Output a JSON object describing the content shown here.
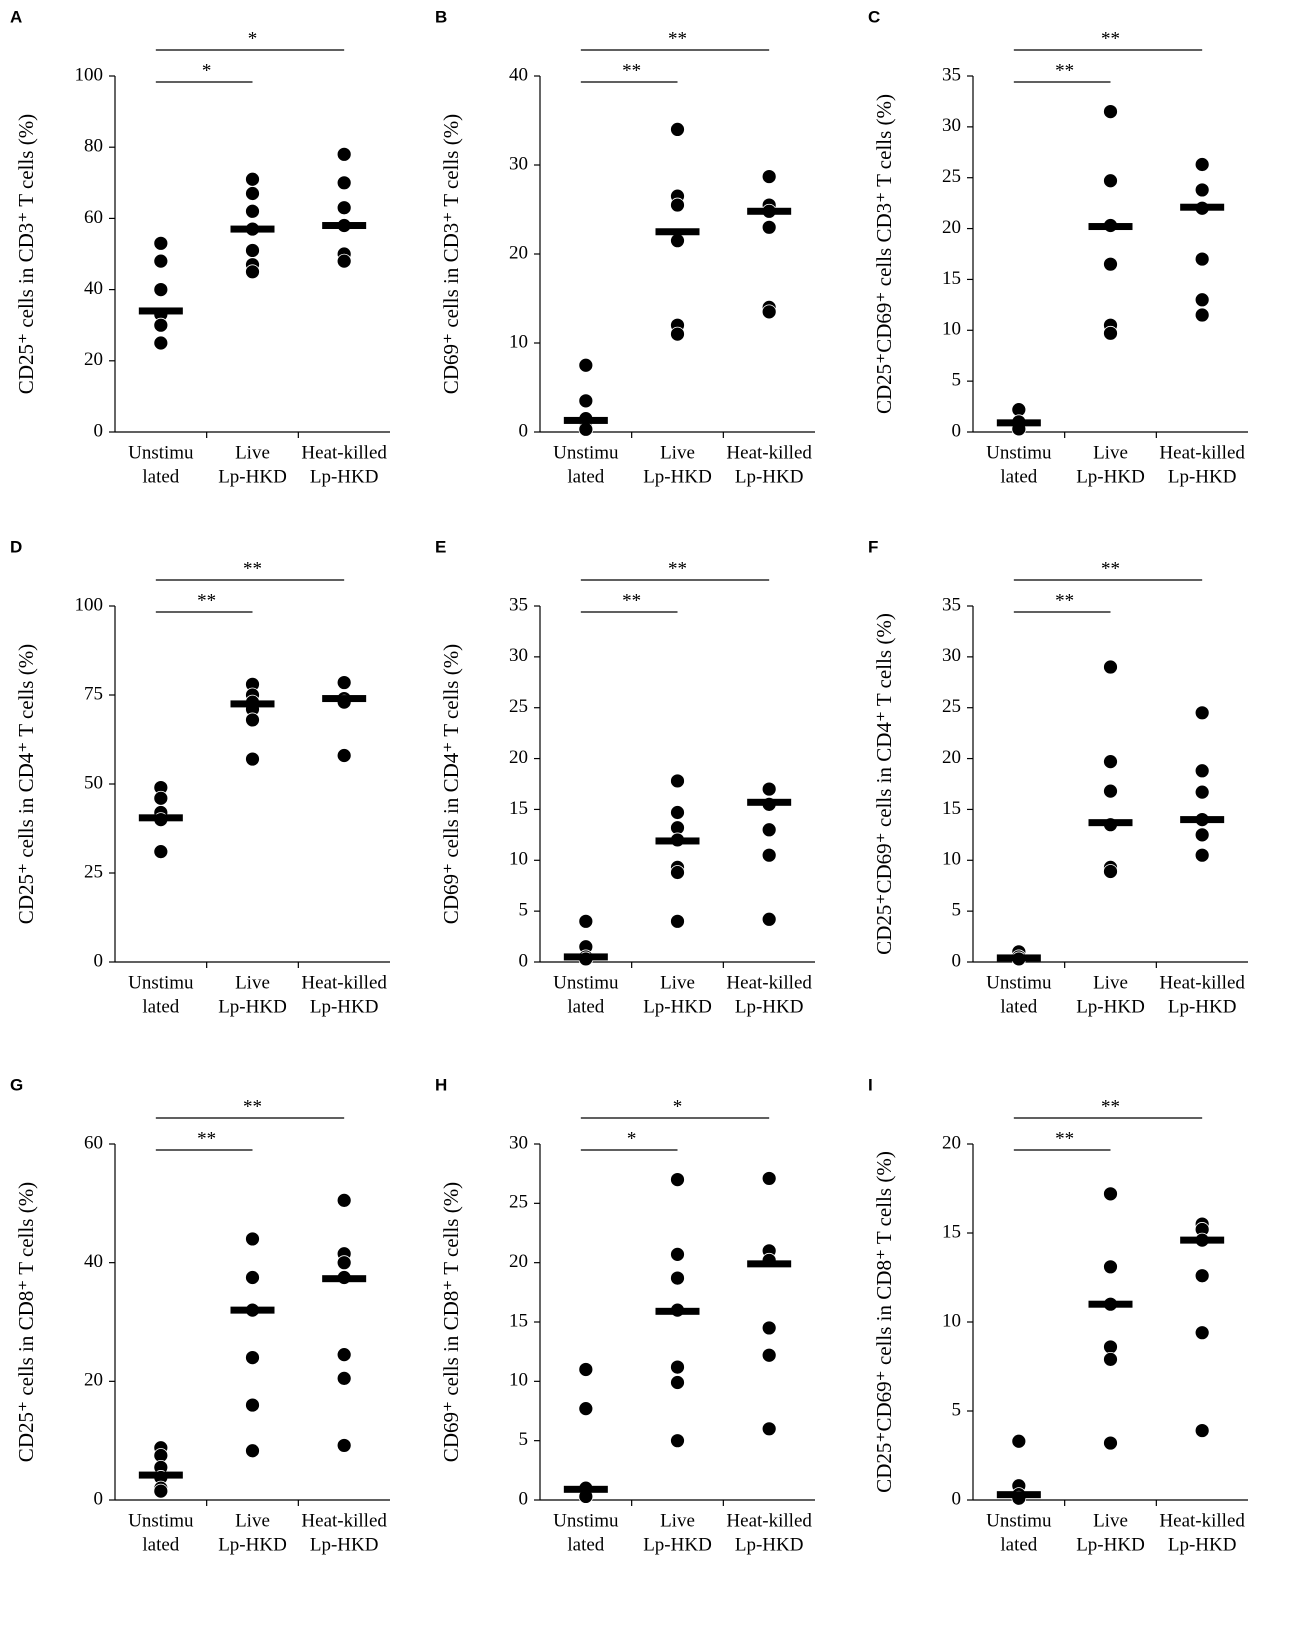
{
  "chart_data": [
    {
      "type": "dot",
      "panel": "A",
      "ylabel": "CD25⁺ cells in CD3⁺ T cells (%)",
      "categories": [
        [
          "Unstimu",
          "lated"
        ],
        [
          "Live",
          "Lp-HKD"
        ],
        [
          "Heat-killed",
          "Lp-HKD"
        ]
      ],
      "points": [
        [
          53,
          48,
          40,
          33,
          30,
          25
        ],
        [
          71,
          67,
          62,
          57,
          51,
          47,
          45
        ],
        [
          78,
          70,
          63,
          58,
          50,
          48
        ]
      ],
      "means": [
        34,
        57,
        58
      ],
      "ylim": [
        0,
        100
      ],
      "yticks": [
        0,
        20,
        40,
        60,
        80,
        100
      ],
      "annotations": [
        "*",
        "*"
      ]
    },
    {
      "type": "dot",
      "panel": "B",
      "ylabel": "CD69⁺ cells in CD3⁺ T cells (%)",
      "categories": [
        [
          "Unstimu",
          "lated"
        ],
        [
          "Live",
          "Lp-HKD"
        ],
        [
          "Heat-killed",
          "Lp-HKD"
        ]
      ],
      "points": [
        [
          7.5,
          3.5,
          1.5,
          0.5,
          0.3
        ],
        [
          34,
          26.5,
          25.5,
          21.5,
          12,
          11
        ],
        [
          28.7,
          25.5,
          24.8,
          23,
          14,
          13.5
        ]
      ],
      "means": [
        1.3,
        22.5,
        24.8
      ],
      "ylim": [
        0,
        40
      ],
      "yticks": [
        0,
        10,
        20,
        30,
        40
      ],
      "annotations": [
        "**",
        "**"
      ]
    },
    {
      "type": "dot",
      "panel": "C",
      "ylabel": "CD25⁺CD69⁺ cells CD3⁺ T cells (%)",
      "categories": [
        [
          "Unstimu",
          "lated"
        ],
        [
          "Live",
          "Lp-HKD"
        ],
        [
          "Heat-killed",
          "Lp-HKD"
        ]
      ],
      "points": [
        [
          2.2,
          1,
          0.5,
          0.3
        ],
        [
          31.5,
          24.7,
          20.3,
          16.5,
          10.5,
          9.7
        ],
        [
          26.3,
          23.8,
          22,
          17,
          13,
          11.5
        ]
      ],
      "means": [
        0.9,
        20.2,
        22.1
      ],
      "ylim": [
        0,
        35
      ],
      "yticks": [
        0,
        5,
        10,
        15,
        20,
        25,
        30,
        35
      ],
      "annotations": [
        "**",
        "**"
      ]
    },
    {
      "type": "dot",
      "panel": "D",
      "ylabel": "CD25⁺ cells in CD4⁺ T cells (%)",
      "categories": [
        [
          "Unstimu",
          "lated"
        ],
        [
          "Live",
          "Lp-HKD"
        ],
        [
          "Heat-killed",
          "Lp-HKD"
        ]
      ],
      "points": [
        [
          49,
          46,
          42,
          40,
          31
        ],
        [
          78,
          75,
          73,
          71,
          68,
          57
        ],
        [
          78.5,
          74,
          73,
          58
        ]
      ],
      "means": [
        40.5,
        72.5,
        74
      ],
      "ylim": [
        0,
        100
      ],
      "yticks": [
        0,
        25,
        50,
        75,
        100
      ],
      "annotations": [
        "**",
        "**"
      ]
    },
    {
      "type": "dot",
      "panel": "E",
      "ylabel": "CD69⁺ cells in CD4⁺ T cells (%)",
      "categories": [
        [
          "Unstimu",
          "lated"
        ],
        [
          "Live",
          "Lp-HKD"
        ],
        [
          "Heat-killed",
          "Lp-HKD"
        ]
      ],
      "points": [
        [
          4,
          1.5,
          0.5,
          0.3
        ],
        [
          17.8,
          14.7,
          13.2,
          12,
          9.3,
          8.8,
          4
        ],
        [
          17,
          15.5,
          13,
          10.5,
          4.2
        ]
      ],
      "means": [
        0.5,
        11.9,
        15.7
      ],
      "ylim": [
        0,
        35
      ],
      "yticks": [
        0,
        5,
        10,
        15,
        20,
        25,
        30,
        35
      ],
      "annotations": [
        "**",
        "**"
      ]
    },
    {
      "type": "dot",
      "panel": "F",
      "ylabel": "CD25⁺CD69⁺ cells in CD4⁺ T cells (%)",
      "categories": [
        [
          "Unstimu",
          "lated"
        ],
        [
          "Live",
          "Lp-HKD"
        ],
        [
          "Heat-killed",
          "Lp-HKD"
        ]
      ],
      "points": [
        [
          1,
          0.5,
          0.3
        ],
        [
          29,
          19.7,
          16.8,
          13.5,
          9.3,
          8.9
        ],
        [
          24.5,
          18.8,
          16.7,
          14,
          12.5,
          10.5
        ]
      ],
      "means": [
        0.4,
        13.7,
        14
      ],
      "ylim": [
        0,
        35
      ],
      "yticks": [
        0,
        5,
        10,
        15,
        20,
        25,
        30,
        35
      ],
      "annotations": [
        "**",
        "**"
      ]
    },
    {
      "type": "dot",
      "panel": "G",
      "ylabel": "CD25⁺ cells in CD8⁺ T cells (%)",
      "categories": [
        [
          "Unstimu",
          "lated"
        ],
        [
          "Live",
          "Lp-HKD"
        ],
        [
          "Heat-killed",
          "Lp-HKD"
        ]
      ],
      "points": [
        [
          8.8,
          7.5,
          5.5,
          3.8,
          2,
          1.5
        ],
        [
          44,
          37.5,
          32,
          24,
          16,
          8.3
        ],
        [
          50.5,
          41.5,
          40,
          37.5,
          24.5,
          20.5,
          9.2
        ]
      ],
      "means": [
        4.2,
        32,
        37.3
      ],
      "ylim": [
        0,
        60
      ],
      "yticks": [
        0,
        20,
        40,
        60
      ],
      "annotations": [
        "**",
        "**"
      ]
    },
    {
      "type": "dot",
      "panel": "H",
      "ylabel": "CD69⁺ cells in CD8⁺ T cells (%)",
      "categories": [
        [
          "Unstimu",
          "lated"
        ],
        [
          "Live",
          "Lp-HKD"
        ],
        [
          "Heat-killed",
          "Lp-HKD"
        ]
      ],
      "points": [
        [
          11,
          7.7,
          1,
          0.3
        ],
        [
          27,
          20.7,
          18.7,
          16,
          11.2,
          9.9,
          5
        ],
        [
          27.1,
          21,
          20.2,
          14.5,
          12.2,
          6
        ]
      ],
      "means": [
        0.9,
        15.9,
        19.9
      ],
      "ylim": [
        0,
        30
      ],
      "yticks": [
        0,
        5,
        10,
        15,
        20,
        25,
        30
      ],
      "annotations": [
        "*",
        "*"
      ]
    },
    {
      "type": "dot",
      "panel": "I",
      "ylabel": "CD25⁺CD69⁺ cells in CD8⁺ T cells (%)",
      "categories": [
        [
          "Unstimu",
          "lated"
        ],
        [
          "Live",
          "Lp-HKD"
        ],
        [
          "Heat-killed",
          "Lp-HKD"
        ]
      ],
      "points": [
        [
          3.3,
          0.8,
          0.3,
          0.1
        ],
        [
          17.2,
          13.1,
          11,
          8.6,
          7.9,
          3.2
        ],
        [
          15.5,
          15.2,
          14.6,
          12.6,
          9.4,
          3.9
        ]
      ],
      "means": [
        0.3,
        11,
        14.6
      ],
      "ylim": [
        0,
        20
      ],
      "yticks": [
        0,
        5,
        10,
        15,
        20
      ],
      "annotations": [
        "**",
        "**"
      ]
    }
  ]
}
